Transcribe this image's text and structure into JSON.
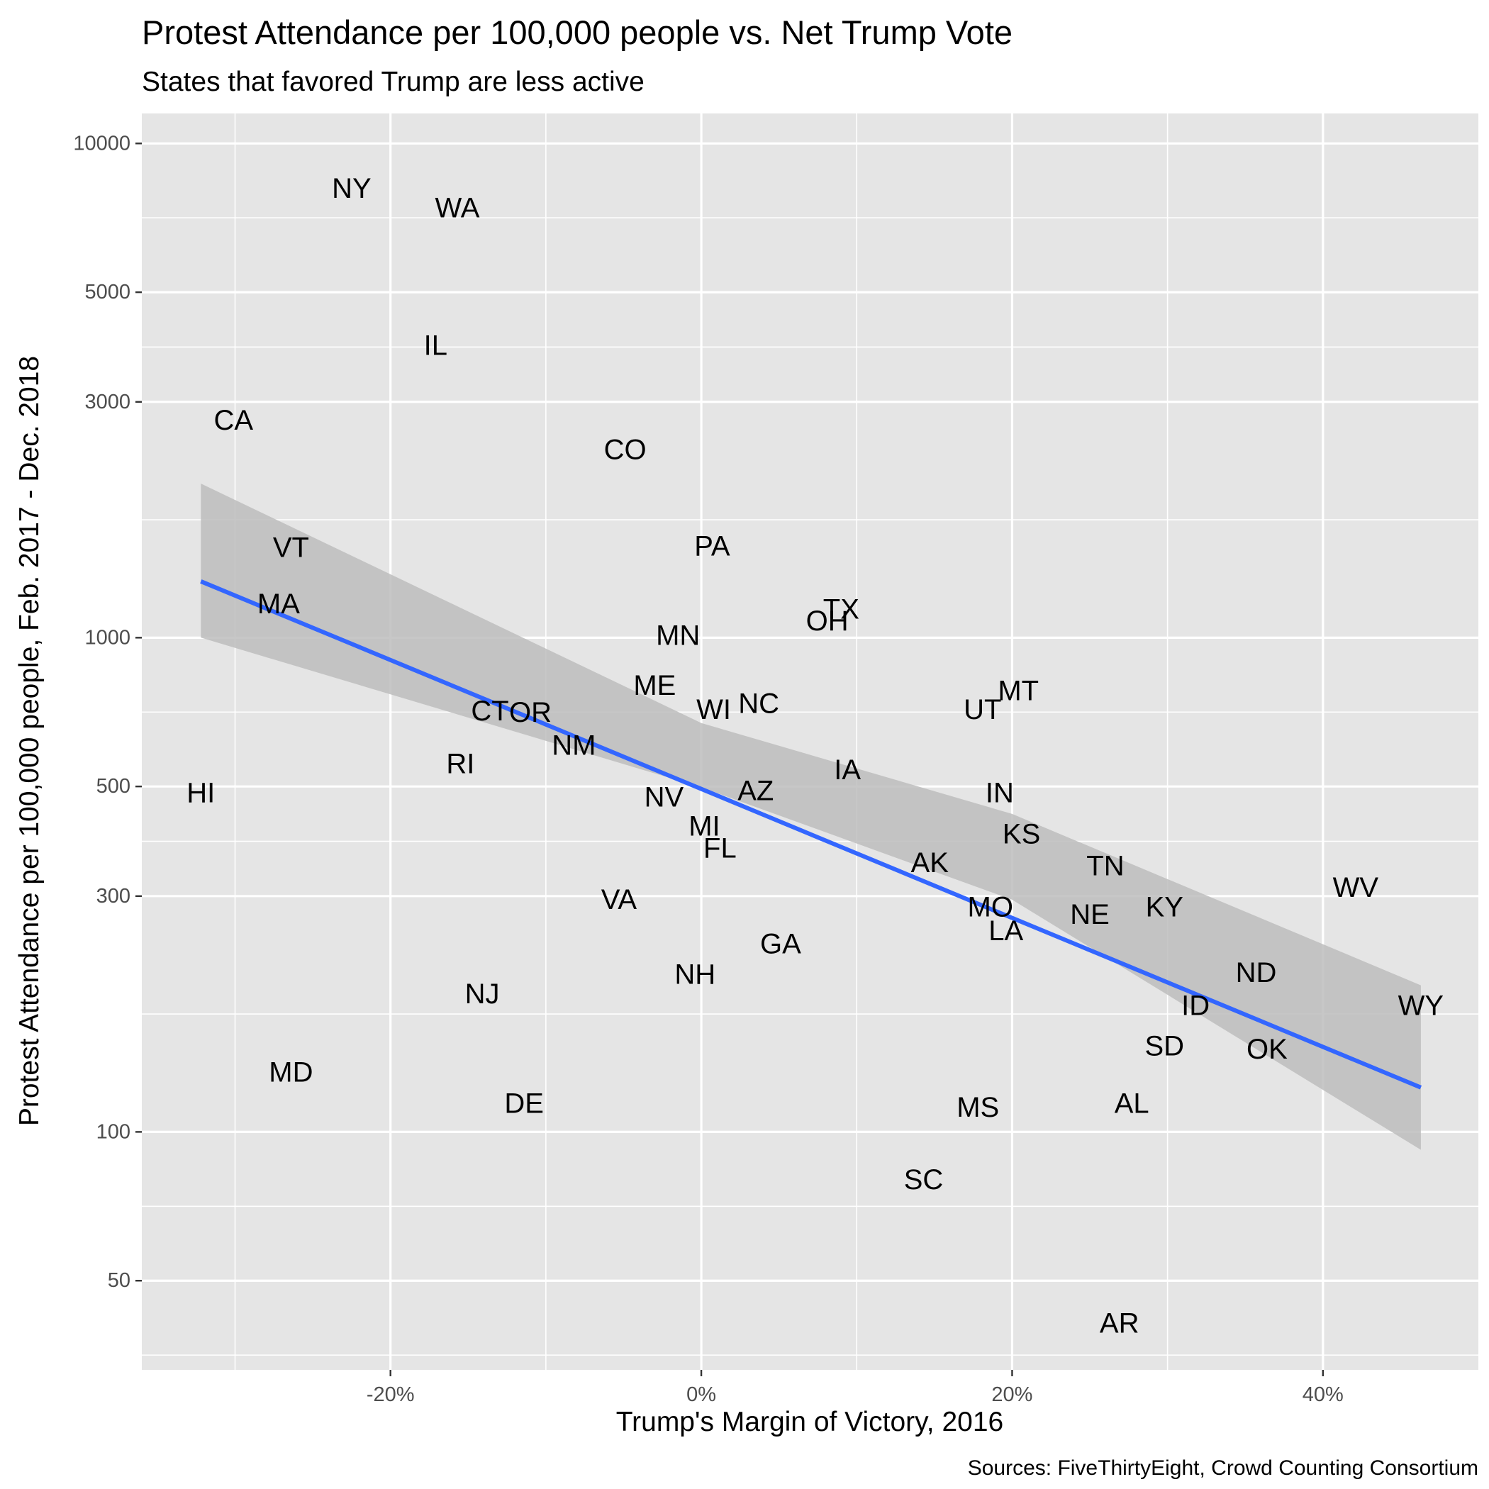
{
  "chart_data": {
    "type": "scatter",
    "title": "Protest Attendance per 100,000 people vs. Net Trump Vote",
    "subtitle": "States that favored Trump are less active",
    "xlabel": "Trump's Margin of Victory, 2016",
    "ylabel": "Protest Attendance per 100,000 people, Feb. 2017 - Dec. 2018",
    "caption": "Sources: FiveThirtyEight, Crowd Counting Consortium",
    "x_scale": "linear",
    "y_scale": "log10",
    "xlim": [
      -36,
      50
    ],
    "ylim": [
      33,
      11500
    ],
    "x_ticks": [
      -20,
      0,
      20,
      40
    ],
    "x_tick_labels": [
      "-20%",
      "0%",
      "20%",
      "40%"
    ],
    "y_ticks": [
      50,
      100,
      300,
      500,
      1000,
      3000,
      5000,
      10000
    ],
    "y_tick_labels": [
      "50",
      "100",
      "300",
      "500",
      "1000",
      "3000",
      "5000",
      "10000"
    ],
    "grid": true,
    "colors": {
      "panel": "#e5e5e5",
      "grid": "#ffffff",
      "trend_line": "#3366ff",
      "confidence_band": "#bdbdbd"
    },
    "points": [
      {
        "label": "NY",
        "x": -22.5,
        "y": 8100
      },
      {
        "label": "WA",
        "x": -15.7,
        "y": 7400
      },
      {
        "label": "IL",
        "x": -17.1,
        "y": 3900
      },
      {
        "label": "CA",
        "x": -30.1,
        "y": 2750
      },
      {
        "label": "CO",
        "x": -4.9,
        "y": 2400
      },
      {
        "label": "VT",
        "x": -26.4,
        "y": 1520
      },
      {
        "label": "PA",
        "x": 0.7,
        "y": 1530
      },
      {
        "label": "MA",
        "x": -27.2,
        "y": 1170
      },
      {
        "label": "TX",
        "x": 9.0,
        "y": 1140
      },
      {
        "label": "OH",
        "x": 8.1,
        "y": 1080
      },
      {
        "label": "MN",
        "x": -1.5,
        "y": 1010
      },
      {
        "label": "ME",
        "x": -3.0,
        "y": 800
      },
      {
        "label": "MT",
        "x": 20.4,
        "y": 780
      },
      {
        "label": "NC",
        "x": 3.7,
        "y": 735
      },
      {
        "label": "CT",
        "x": -13.6,
        "y": 710
      },
      {
        "label": "OR",
        "x": -11.0,
        "y": 705
      },
      {
        "label": "WI",
        "x": 0.8,
        "y": 715
      },
      {
        "label": "UT",
        "x": 18.1,
        "y": 715
      },
      {
        "label": "NM",
        "x": -8.2,
        "y": 605
      },
      {
        "label": "RI",
        "x": -15.5,
        "y": 555
      },
      {
        "label": "IA",
        "x": 9.4,
        "y": 540
      },
      {
        "label": "HI",
        "x": -32.2,
        "y": 485
      },
      {
        "label": "IN",
        "x": 19.2,
        "y": 485
      },
      {
        "label": "NV",
        "x": -2.4,
        "y": 475
      },
      {
        "label": "AZ",
        "x": 3.5,
        "y": 490
      },
      {
        "label": "MI",
        "x": 0.2,
        "y": 415
      },
      {
        "label": "KS",
        "x": 20.6,
        "y": 400
      },
      {
        "label": "FL",
        "x": 1.2,
        "y": 375
      },
      {
        "label": "AK",
        "x": 14.7,
        "y": 350
      },
      {
        "label": "TN",
        "x": 26.0,
        "y": 345
      },
      {
        "label": "WV",
        "x": 42.1,
        "y": 312
      },
      {
        "label": "VA",
        "x": -5.3,
        "y": 295
      },
      {
        "label": "MO",
        "x": 18.6,
        "y": 285
      },
      {
        "label": "KY",
        "x": 29.8,
        "y": 285
      },
      {
        "label": "NE",
        "x": 25.0,
        "y": 275
      },
      {
        "label": "LA",
        "x": 19.6,
        "y": 255
      },
      {
        "label": "GA",
        "x": 5.1,
        "y": 240
      },
      {
        "label": "NH",
        "x": -0.4,
        "y": 208
      },
      {
        "label": "ND",
        "x": 35.7,
        "y": 210
      },
      {
        "label": "NJ",
        "x": -14.1,
        "y": 190
      },
      {
        "label": "ID",
        "x": 31.8,
        "y": 180
      },
      {
        "label": "WY",
        "x": 46.3,
        "y": 180
      },
      {
        "label": "SD",
        "x": 29.8,
        "y": 149
      },
      {
        "label": "OK",
        "x": 36.4,
        "y": 147
      },
      {
        "label": "MD",
        "x": -26.4,
        "y": 132
      },
      {
        "label": "AL",
        "x": 27.7,
        "y": 114
      },
      {
        "label": "DE",
        "x": -11.4,
        "y": 114
      },
      {
        "label": "MS",
        "x": 17.8,
        "y": 112
      },
      {
        "label": "SC",
        "x": 14.3,
        "y": 80
      },
      {
        "label": "AR",
        "x": 26.9,
        "y": 41
      }
    ],
    "trend": {
      "x": [
        -32.2,
        46.3
      ],
      "y": [
        1300,
        123
      ]
    },
    "band": {
      "x": [
        -32.2,
        0,
        20,
        46.3
      ],
      "upper": [
        2050,
        672,
        440,
        198
      ],
      "lower": [
        1000,
        498,
        295,
        92
      ]
    }
  }
}
